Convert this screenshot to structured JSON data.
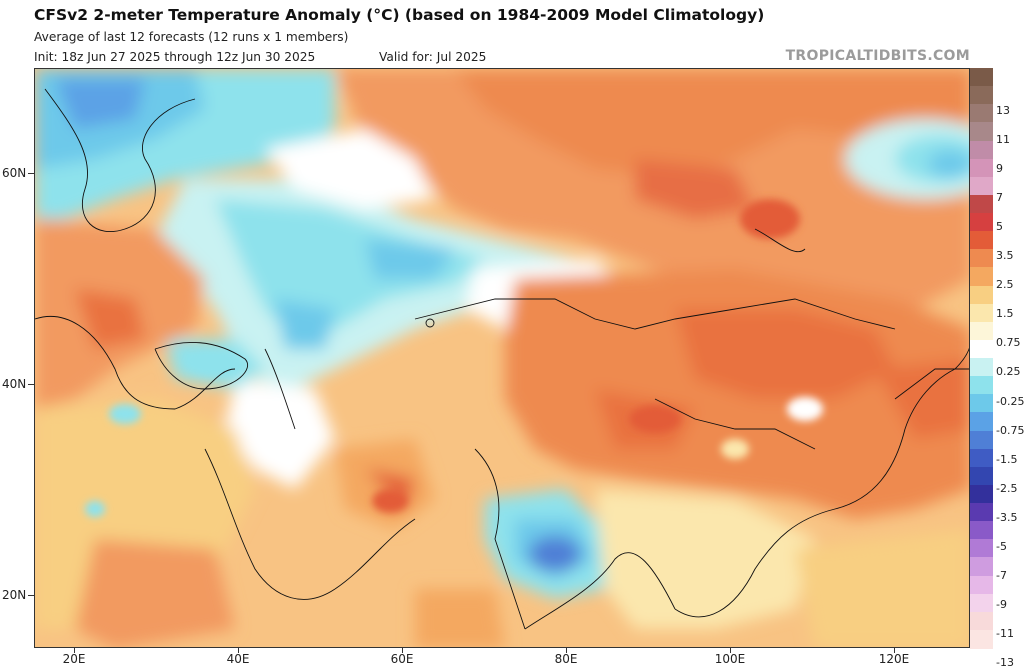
{
  "header": {
    "title": "CFSv2 2-meter Temperature Anomaly (°C) (based on 1984-2009 Model Climatology)",
    "subtitle": "Average of last 12 forecasts (12 runs x 1 members)",
    "init": "Init: 18z Jun 27 2025 through 12z Jun 30 2025",
    "valid": "Valid for: Jul 2025",
    "brand": "TROPICALTIDBITS.COM"
  },
  "map": {
    "latitude_labels": [
      "60N",
      "40N",
      "20N"
    ],
    "longitude_labels": [
      "20E",
      "40E",
      "60E",
      "80E",
      "100E",
      "120E"
    ]
  },
  "colorbar": {
    "labels": [
      "13",
      "11",
      "9",
      "7",
      "5",
      "3.5",
      "2.5",
      "1.5",
      "0.75",
      "0.25",
      "-0.25",
      "-0.75",
      "-1.5",
      "-2.5",
      "-3.5",
      "-5",
      "-7",
      "-9",
      "-11",
      "-13"
    ],
    "colors": [
      "#7a5a48",
      "#8a6a5a",
      "#9a7a72",
      "#a8888a",
      "#c08ca8",
      "#d494b8",
      "#e0a8c8",
      "#c04848",
      "#d64040",
      "#e35c38",
      "#ee8a50",
      "#f4a860",
      "#f8cf82",
      "#fbe7ad",
      "#fdf6d9",
      "#ffffff",
      "#c9f2f2",
      "#8ee2ec",
      "#6dc9ea",
      "#5ba2e6",
      "#4f7fd6",
      "#3f5cc4",
      "#3346b0",
      "#33309c",
      "#5a3ab0",
      "#8a5ac8",
      "#b07ad6",
      "#cf9ce0",
      "#e6b8e8",
      "#f3d3ec",
      "#f8dada",
      "#fbe5e2"
    ]
  }
}
